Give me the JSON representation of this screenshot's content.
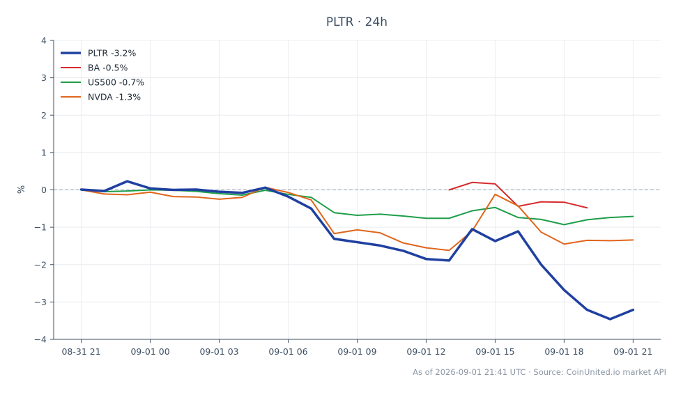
{
  "chart_data": {
    "type": "line",
    "title": "PLTR · 24h",
    "ylabel": "%",
    "xlabel": "",
    "ylim": [
      -4,
      4
    ],
    "xlim": [
      -1.2,
      25.2
    ],
    "yticks": [
      4,
      3,
      2,
      1,
      0,
      -1,
      -2,
      -3,
      -4
    ],
    "ytick_labels": [
      "4",
      "3",
      "2",
      "1",
      "0",
      "−1",
      "−2",
      "−3",
      "−4"
    ],
    "xticks": [
      0,
      3,
      6,
      9,
      12,
      15,
      18,
      21,
      24
    ],
    "xtick_labels": [
      "08-31 21",
      "09-01 00",
      "09-01 03",
      "09-01 06",
      "09-01 09",
      "09-01 12",
      "09-01 15",
      "09-01 18",
      "09-01 21"
    ],
    "grid": true,
    "legend_position": "top-left",
    "baseline": 0,
    "x": [
      0,
      1,
      2,
      3,
      4,
      5,
      6,
      7,
      8,
      9,
      10,
      11,
      12,
      13,
      14,
      15,
      16,
      17,
      18,
      19,
      20,
      21,
      22,
      23,
      24
    ],
    "series": [
      {
        "name": "PLTR -3.2%",
        "color": "#1f40a0",
        "width": 3.5,
        "values": [
          0.01,
          -0.03,
          0.23,
          0.04,
          0.0,
          0.01,
          -0.05,
          -0.08,
          0.06,
          -0.18,
          -0.5,
          -1.31,
          -1.4,
          -1.49,
          -1.63,
          -1.85,
          -1.89,
          -1.05,
          -1.37,
          -1.11,
          -2.0,
          -2.68,
          -3.21,
          -3.46,
          -3.21
        ]
      },
      {
        "name": "BA -0.5%",
        "color": "#d62b2b",
        "width": 2,
        "values": [
          null,
          null,
          null,
          null,
          null,
          null,
          null,
          null,
          null,
          null,
          null,
          null,
          null,
          null,
          null,
          null,
          0.0,
          0.2,
          0.16,
          -0.44,
          -0.32,
          -0.33,
          -0.48,
          null,
          null
        ]
      },
      {
        "name": "US500 -0.7%",
        "color": "#1e9e4a",
        "width": 2,
        "values": [
          0.0,
          -0.05,
          -0.03,
          0.0,
          -0.01,
          -0.04,
          -0.1,
          -0.14,
          -0.01,
          -0.12,
          -0.2,
          -0.61,
          -0.68,
          -0.65,
          -0.7,
          -0.76,
          -0.76,
          -0.56,
          -0.47,
          -0.74,
          -0.79,
          -0.93,
          -0.8,
          -0.74,
          -0.71
        ]
      },
      {
        "name": "NVDA -1.3%",
        "color": "#e0661c",
        "width": 2,
        "values": [
          0.0,
          -0.11,
          -0.13,
          -0.06,
          -0.18,
          -0.19,
          -0.25,
          -0.2,
          0.07,
          -0.07,
          -0.27,
          -1.17,
          -1.07,
          -1.15,
          -1.42,
          -1.55,
          -1.62,
          -1.1,
          -0.12,
          -0.43,
          -1.13,
          -1.45,
          -1.35,
          -1.36,
          -1.34
        ]
      }
    ]
  },
  "footer": "As of 2026-09-01 21:41 UTC · Source: CoinUnited.io market API"
}
